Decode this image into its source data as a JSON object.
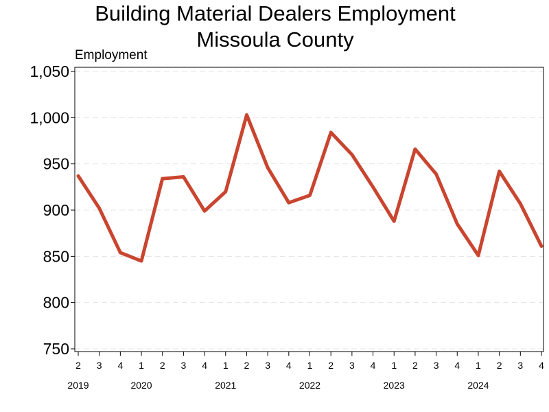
{
  "chart_data": {
    "type": "line",
    "title": [
      "Building Material Dealers Employment",
      "Missoula County"
    ],
    "ylabel": "Employment",
    "xlabel": "",
    "ylim": [
      750,
      1050
    ],
    "yticks": [
      750,
      800,
      850,
      900,
      950,
      1000,
      1050
    ],
    "yticks_labels": [
      "750",
      "800",
      "850",
      "900",
      "950",
      "1,000",
      "1,050"
    ],
    "grid": "horizontal dashed",
    "line_color": "#c9452f",
    "categories": [
      "2",
      "3",
      "4",
      "1",
      "2",
      "3",
      "4",
      "1",
      "2",
      "3",
      "4",
      "1",
      "2",
      "3",
      "4",
      "1",
      "2",
      "3",
      "4",
      "1",
      "2",
      "3",
      "4"
    ],
    "years": [
      {
        "label": "2019",
        "index": 0
      },
      {
        "label": "2020",
        "index": 3
      },
      {
        "label": "2021",
        "index": 7
      },
      {
        "label": "2022",
        "index": 11
      },
      {
        "label": "2023",
        "index": 15
      },
      {
        "label": "2024",
        "index": 19
      }
    ],
    "series": [
      {
        "values": [
          937,
          902,
          854,
          845,
          934,
          936,
          899,
          920,
          1003,
          946,
          908,
          916,
          984,
          960,
          925,
          888,
          966,
          939,
          885,
          851,
          942,
          907,
          861
        ]
      }
    ]
  }
}
